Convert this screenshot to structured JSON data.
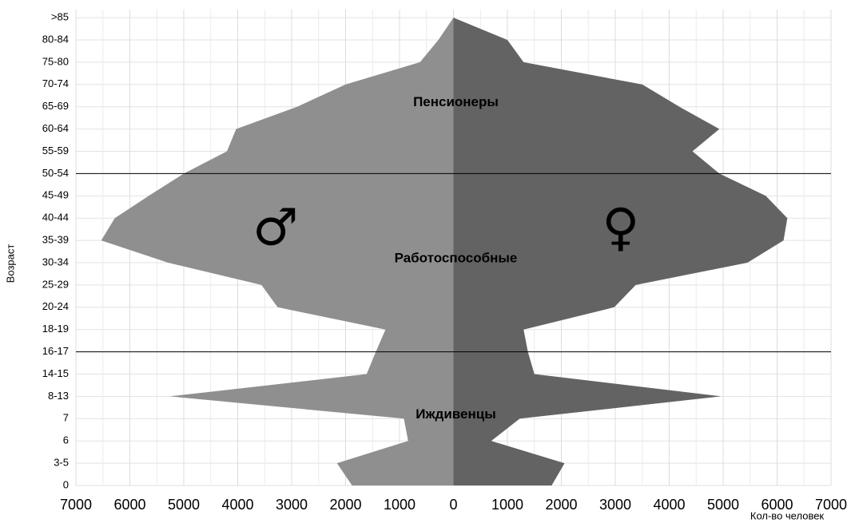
{
  "chart_data": {
    "type": "pyramid",
    "categories": [
      "0",
      "3-5",
      "6",
      "7",
      "8-13",
      "14-15",
      "16-17",
      "18-19",
      "20-24",
      "25-29",
      "30-34",
      "35-39",
      "40-44",
      "45-49",
      "50-54",
      "55-59",
      "60-64",
      "65-69",
      "70-74",
      "75-80",
      "80-84",
      ">85"
    ],
    "series": [
      {
        "name": "♂",
        "color": "#8f8f8f",
        "values": [
          -1880,
          -2160,
          -840,
          -920,
          -5260,
          -1610,
          -1440,
          -1260,
          -3260,
          -3560,
          -5290,
          -6530,
          -6280,
          -5650,
          -5000,
          -4200,
          -4030,
          -2900,
          -2000,
          -620,
          -280,
          0
        ]
      },
      {
        "name": "♀",
        "color": "#636363",
        "values": [
          1820,
          2060,
          700,
          1230,
          4960,
          1500,
          1380,
          1300,
          2980,
          3380,
          5450,
          6120,
          6190,
          5790,
          4930,
          4430,
          4930,
          4190,
          3500,
          1300,
          1000,
          0
        ]
      }
    ],
    "xlim": [
      -7000,
      7000
    ],
    "xticks": [
      {
        "value": -7000,
        "label": "7000"
      },
      {
        "value": -6000,
        "label": "6000"
      },
      {
        "value": -5000,
        "label": "5000"
      },
      {
        "value": -4000,
        "label": "4000"
      },
      {
        "value": -3000,
        "label": "3000"
      },
      {
        "value": -2000,
        "label": "2000"
      },
      {
        "value": -1000,
        "label": "1000"
      },
      0,
      1000,
      2000,
      3000,
      4000,
      5000,
      6000,
      7000
    ],
    "xlabel": "Кол-во человек",
    "ylabel": "Возраст",
    "annotations": [
      {
        "text": "Пенсионеры",
        "category": "65-69"
      },
      {
        "text": "Работоспособные",
        "category": "30-34"
      },
      {
        "text": "Иждивенцы",
        "category": "7"
      }
    ],
    "separators": [
      "50-54",
      "16-17"
    ],
    "grid": true
  }
}
